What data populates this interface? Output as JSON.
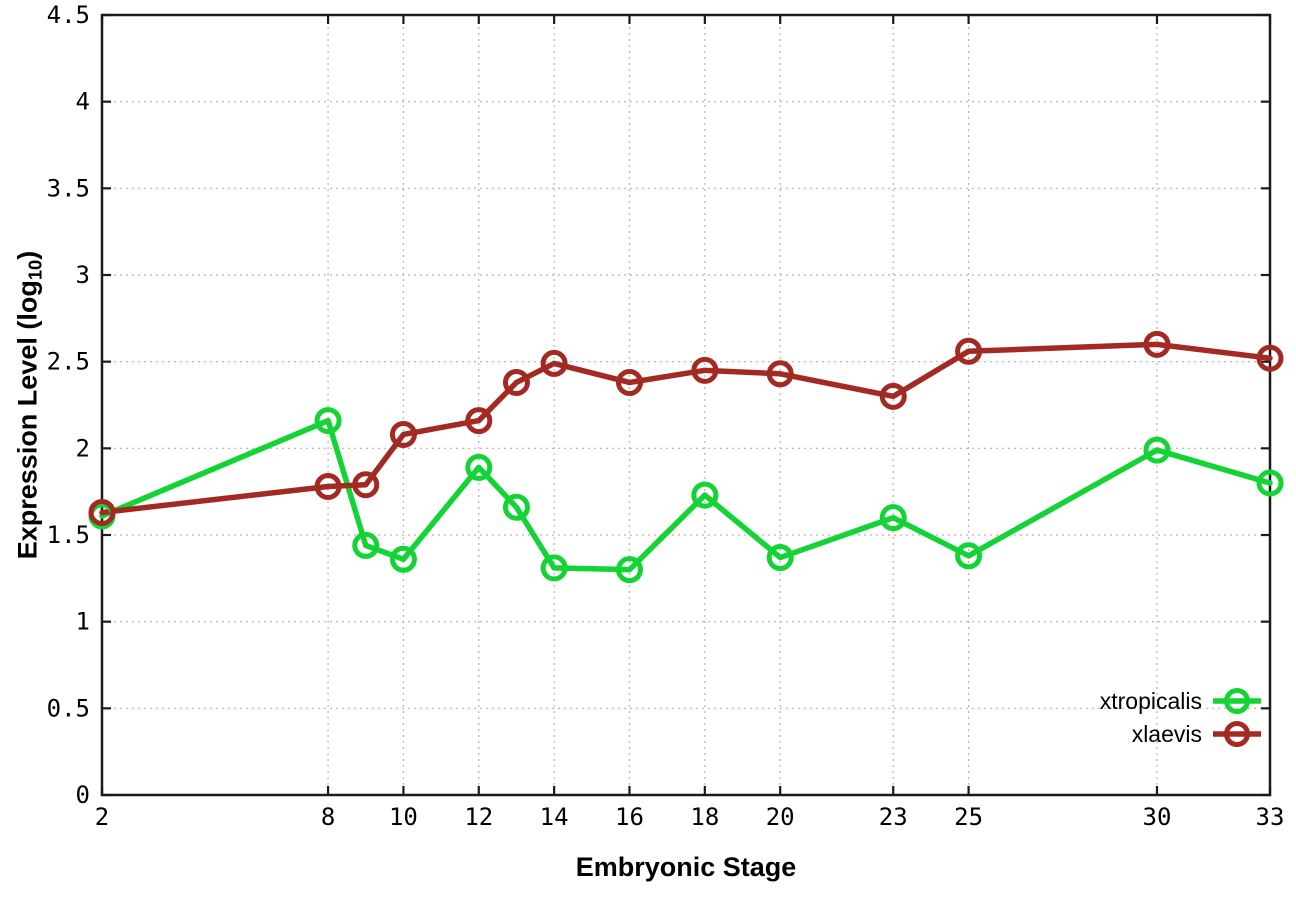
{
  "chart_data": {
    "type": "line",
    "title": "",
    "xlabel": "Embryonic Stage",
    "ylabel_text": "Expression Level (log",
    "ylabel_sub": "10",
    "ylabel_suffix": ")",
    "xlim": [
      2,
      33
    ],
    "ylim": [
      0,
      4.5
    ],
    "grid": true,
    "legend_position": "bottom-right",
    "x": [
      2,
      8,
      9,
      10,
      12,
      13,
      14,
      16,
      18,
      20,
      23,
      25,
      30,
      33
    ],
    "x_tick_values": [
      2,
      8,
      10,
      12,
      14,
      16,
      18,
      20,
      23,
      25,
      30,
      33
    ],
    "x_tick_labels": [
      "2",
      "8",
      "10",
      "12",
      "14",
      "16",
      "18",
      "20",
      "23",
      "25",
      "30",
      "33"
    ],
    "y_tick_values": [
      0,
      0.5,
      1,
      1.5,
      2,
      2.5,
      3,
      3.5,
      4,
      4.5
    ],
    "y_tick_labels": [
      "0",
      "0.5",
      "1",
      "1.5",
      "2",
      "2.5",
      "3",
      "3.5",
      "4",
      "4.5"
    ],
    "series": [
      {
        "name": "xtropicalis",
        "color": "#14d334",
        "values": [
          1.61,
          2.16,
          1.44,
          1.36,
          1.89,
          1.66,
          1.31,
          1.3,
          1.73,
          1.37,
          1.6,
          1.38,
          1.99,
          1.8
        ]
      },
      {
        "name": "xlaevis",
        "color": "#a32a22",
        "values": [
          1.63,
          1.78,
          1.79,
          2.08,
          2.16,
          2.38,
          2.49,
          2.38,
          2.45,
          2.43,
          2.3,
          2.56,
          2.6,
          2.52
        ]
      }
    ],
    "style": {
      "background": "#ffffff",
      "border_color": "#1a1a1a",
      "grid_color": "#b5b5b5",
      "tick_text_color": "#000000",
      "line_width": 5.5,
      "marker_radius": 11,
      "marker_stroke": 5
    }
  }
}
